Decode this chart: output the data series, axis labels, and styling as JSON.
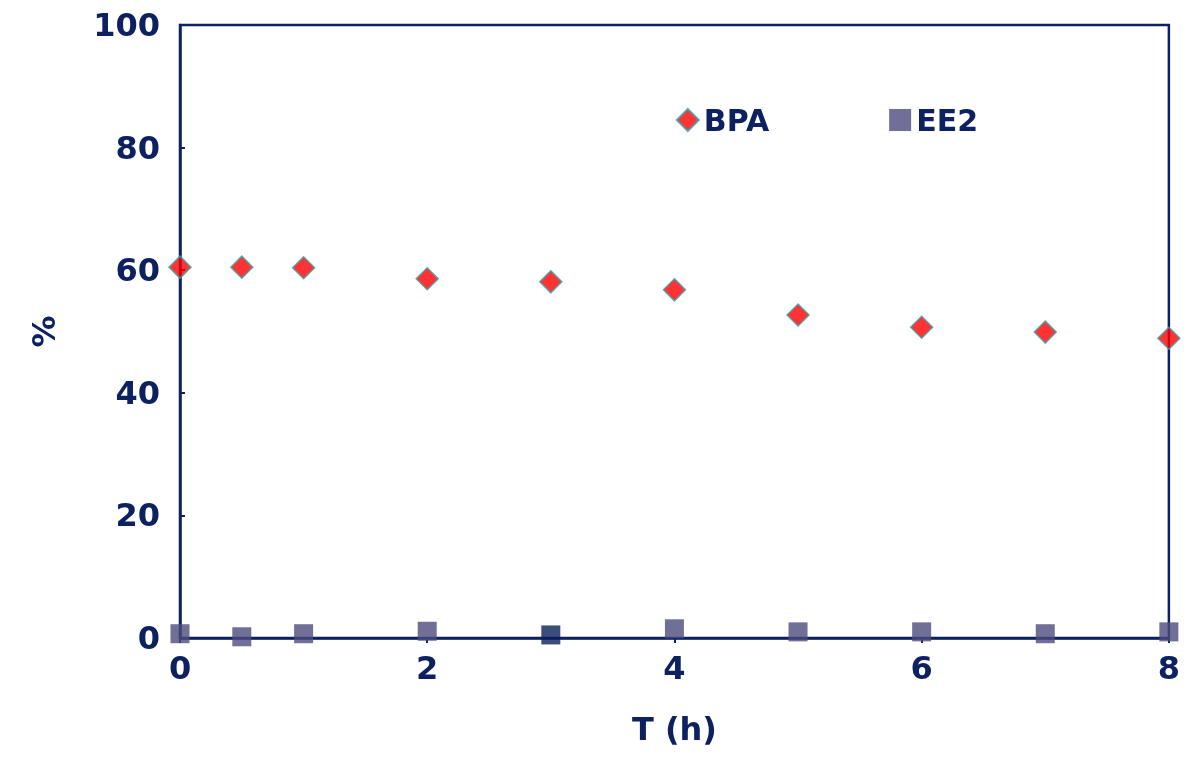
{
  "chart_data": {
    "type": "scatter",
    "xlabel": "T (h)",
    "ylabel": "%",
    "xlim": [
      0,
      8
    ],
    "xticks": [
      0,
      2,
      4,
      6,
      8
    ],
    "ylim": [
      0,
      100
    ],
    "yticks": [
      0,
      20,
      40,
      60,
      80,
      100
    ],
    "grid": false,
    "legend": "top right",
    "x": [
      0,
      0.5,
      1,
      2,
      3,
      4,
      5,
      6,
      7,
      8
    ],
    "series": [
      {
        "name": "BPA",
        "color": "#ff0000",
        "marker": "diamond",
        "values": [
          60.5,
          60.5,
          60.4,
          58.6,
          58.1,
          56.8,
          52.7,
          50.7,
          49.9,
          48.9
        ]
      },
      {
        "name": "EE2",
        "color": "#4b4b7d",
        "marker": "square",
        "colors": [
          "#4b4b7d",
          "#4b4b7d",
          "#4b4b7d",
          "#4b4b7d",
          "#0a1f5c",
          "#4b4b7d",
          "#4b4b7d",
          "#4b4b7d",
          "#4b4b7d",
          "#4b4b7d"
        ],
        "values": [
          0.7,
          0.2,
          0.7,
          1.1,
          0.5,
          1.5,
          1.0,
          1.0,
          0.7,
          1.0
        ]
      }
    ]
  }
}
